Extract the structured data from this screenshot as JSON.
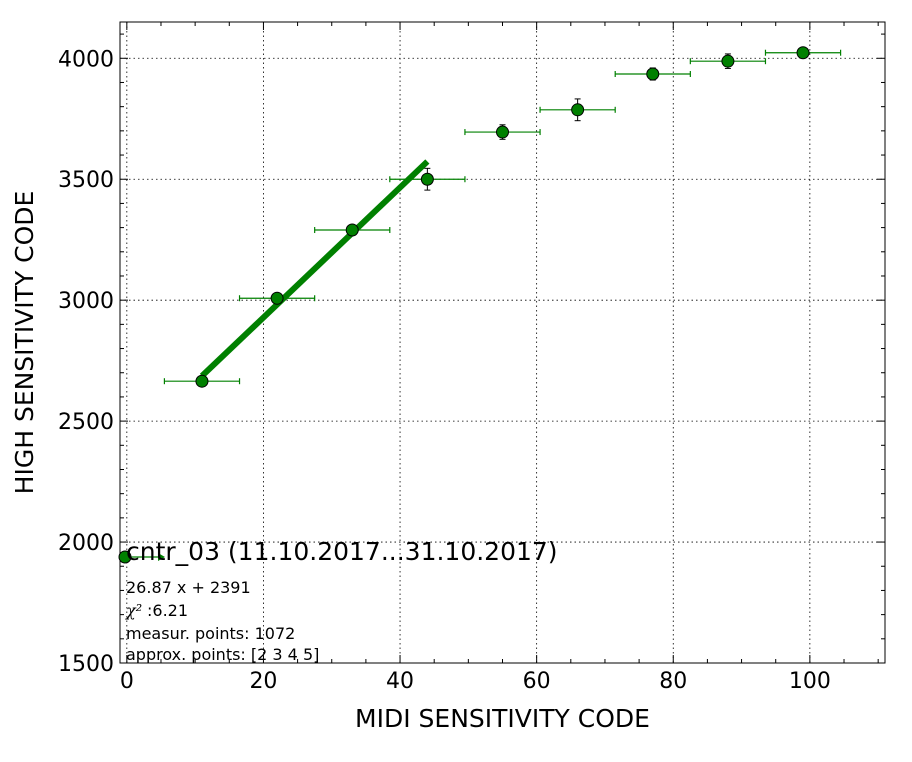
{
  "chart_data": {
    "type": "scatter",
    "xlabel": "MIDI SENSITIVITY CODE",
    "ylabel": "HIGH SENSITIVITY CODE",
    "xlim": [
      -1,
      111
    ],
    "ylim": [
      1500,
      4150
    ],
    "x_ticks": [
      "0",
      "20",
      "40",
      "60",
      "80",
      "100"
    ],
    "y_ticks": [
      "1500",
      "2000",
      "2500",
      "3000",
      "3500",
      "4000"
    ],
    "grid": true,
    "colors": {
      "marker": "#008000",
      "fit_line": "#008000",
      "axes": "#000000",
      "grid": "#000000"
    },
    "series": [
      {
        "marker": "circle",
        "points": [
          {
            "x": 11,
            "y": 2665,
            "xerr": 5.5,
            "yerr": 10
          },
          {
            "x": 22,
            "y": 3008,
            "xerr": 5.5,
            "yerr": 10
          },
          {
            "x": 33,
            "y": 3290,
            "xerr": 5.5,
            "yerr": 12
          },
          {
            "x": 44,
            "y": 3500,
            "xerr": 5.5,
            "yerr": 45
          },
          {
            "x": 55,
            "y": 3695,
            "xerr": 5.5,
            "yerr": 30
          },
          {
            "x": 66,
            "y": 3787,
            "xerr": 5.5,
            "yerr": 45
          },
          {
            "x": 77,
            "y": 3935,
            "xerr": 5.5,
            "yerr": 25
          },
          {
            "x": 88,
            "y": 3988,
            "xerr": 5.5,
            "yerr": 30
          },
          {
            "x": 99,
            "y": 4023,
            "xerr": 5.5,
            "yerr": 15
          }
        ]
      }
    ],
    "fit_line": {
      "slope": 26.87,
      "intercept": 2391,
      "x_range": [
        11,
        44
      ]
    },
    "legend": {
      "title": "cntr_03 (11.10.2017...31.10.2017)",
      "lines": [
        "26.87 x + 2391",
        ":6.21",
        "measur. points: 1072",
        "approx. points: [2 3 4 5]"
      ],
      "chi_symbol": "χ²",
      "placement": "lower-left"
    }
  }
}
